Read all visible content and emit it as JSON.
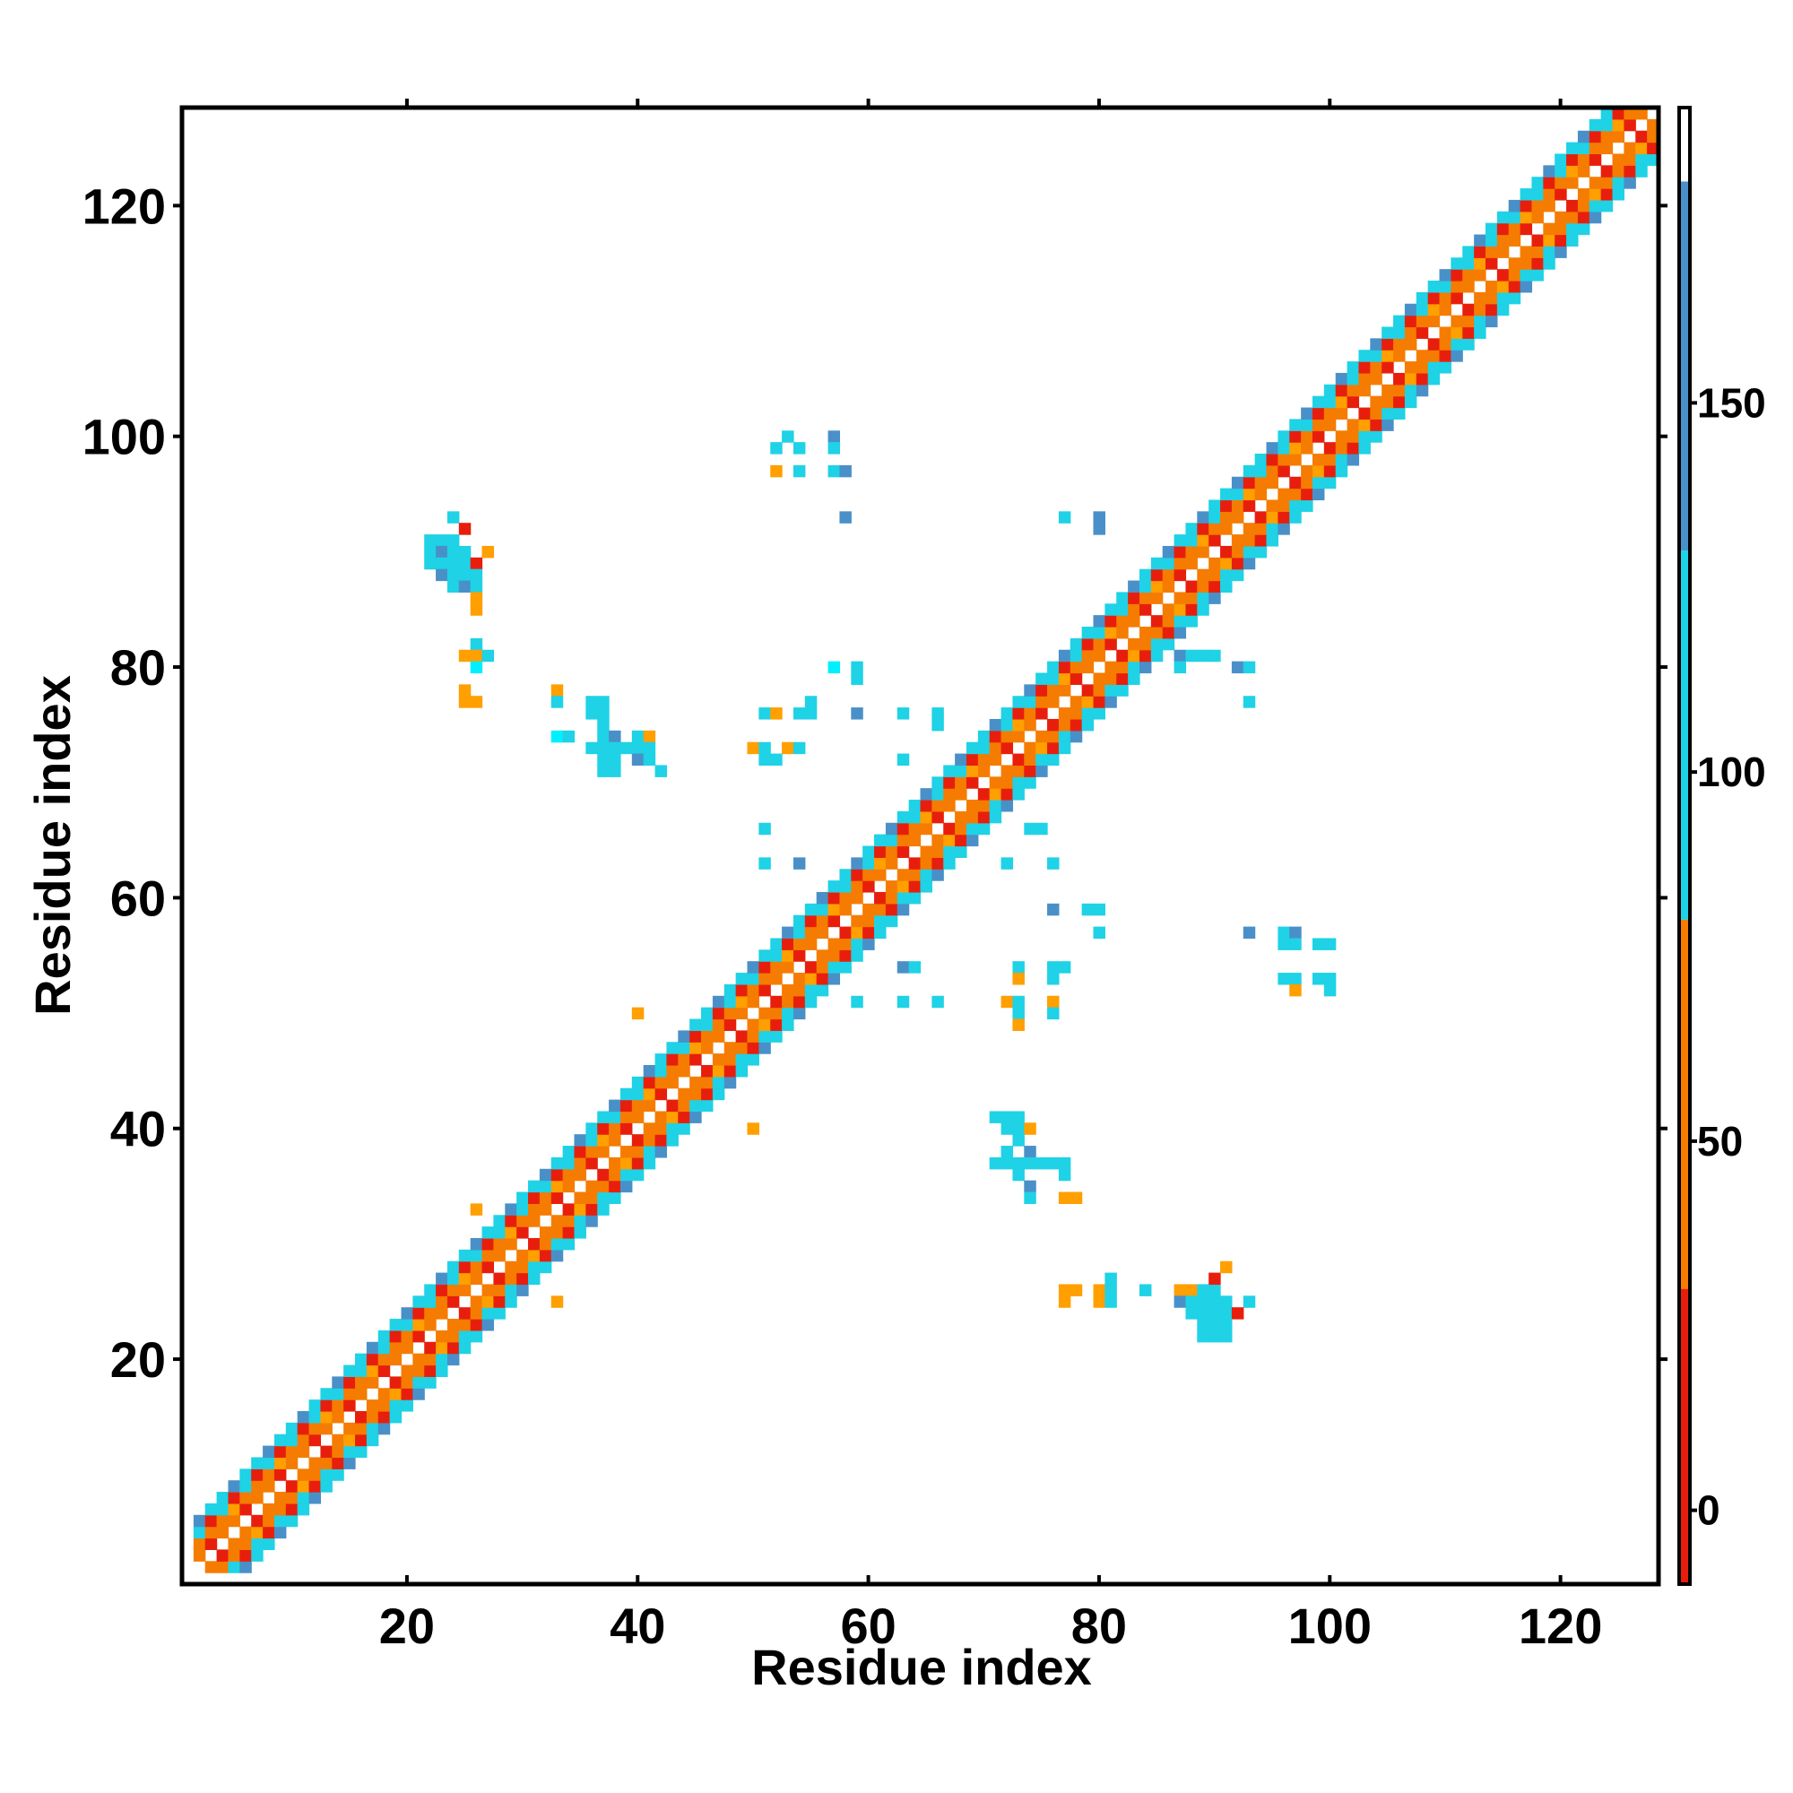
{
  "chart_data": {
    "type": "heatmap",
    "title": "",
    "xlabel": "Residue index",
    "ylabel": "Residue index",
    "xlim": [
      1,
      128
    ],
    "ylim": [
      1,
      128
    ],
    "xticks": [
      20,
      40,
      60,
      80,
      100,
      120
    ],
    "yticks": [
      20,
      40,
      60,
      80,
      100,
      120
    ],
    "grid": false,
    "colorbar": {
      "range": [
        -10,
        190
      ],
      "ticks": [
        0,
        50,
        100,
        150
      ],
      "bins": [
        {
          "from": -10,
          "to": 30,
          "color": "#e81e0c"
        },
        {
          "from": 30,
          "to": 80,
          "color": "#f57c00"
        },
        {
          "from": 80,
          "to": 130,
          "color": "#1fd2e6"
        },
        {
          "from": 130,
          "to": 180,
          "color": "#4a90c8"
        },
        {
          "from": 180,
          "to": 190,
          "color": "#ffffff"
        }
      ]
    },
    "colors": {
      "low": "#e81e0c",
      "mid": "#f57c00",
      "orange": "#ff9f00",
      "cyan": "#1fd2e6",
      "bright_cyan": "#00f0ff",
      "steel": "#4a90c8"
    },
    "diagonal": {
      "start": 2,
      "end": 128,
      "half_width": 4
    },
    "contact_cells": [
      [
        24,
        93,
        "c"
      ],
      [
        25,
        92,
        "r"
      ],
      [
        22,
        91,
        "c"
      ],
      [
        23,
        91,
        "c"
      ],
      [
        24,
        91,
        "c"
      ],
      [
        22,
        90,
        "c"
      ],
      [
        23,
        90,
        "s"
      ],
      [
        24,
        90,
        "c"
      ],
      [
        25,
        90,
        "c"
      ],
      [
        27,
        90,
        "o"
      ],
      [
        22,
        89,
        "c"
      ],
      [
        23,
        89,
        "c"
      ],
      [
        24,
        89,
        "c"
      ],
      [
        25,
        89,
        "c"
      ],
      [
        26,
        89,
        "r"
      ],
      [
        23,
        88,
        "s"
      ],
      [
        24,
        88,
        "c"
      ],
      [
        25,
        88,
        "c"
      ],
      [
        26,
        88,
        "c"
      ],
      [
        24,
        87,
        "c"
      ],
      [
        25,
        87,
        "s"
      ],
      [
        26,
        87,
        "c"
      ],
      [
        26,
        86,
        "o"
      ],
      [
        26,
        85,
        "o"
      ],
      [
        26,
        82,
        "c"
      ],
      [
        25,
        81,
        "o"
      ],
      [
        26,
        81,
        "o"
      ],
      [
        27,
        81,
        "c"
      ],
      [
        26,
        80,
        "b"
      ],
      [
        25,
        78,
        "o"
      ],
      [
        25,
        77,
        "o"
      ],
      [
        26,
        77,
        "o"
      ],
      [
        53,
        100,
        "c"
      ],
      [
        57,
        100,
        "s"
      ],
      [
        52,
        99,
        "c"
      ],
      [
        54,
        99,
        "c"
      ],
      [
        57,
        99,
        "c"
      ],
      [
        52,
        97,
        "o"
      ],
      [
        54,
        97,
        "c"
      ],
      [
        57,
        97,
        "c"
      ],
      [
        58,
        97,
        "s"
      ],
      [
        58,
        93,
        "s"
      ],
      [
        77,
        93,
        "c"
      ],
      [
        80,
        93,
        "s"
      ],
      [
        80,
        92,
        "s"
      ],
      [
        33,
        78,
        "o"
      ],
      [
        33,
        77,
        "c"
      ],
      [
        36,
        77,
        "c"
      ],
      [
        37,
        77,
        "c"
      ],
      [
        36,
        76,
        "c"
      ],
      [
        37,
        76,
        "c"
      ],
      [
        37,
        75,
        "c"
      ],
      [
        33,
        74,
        "b"
      ],
      [
        34,
        74,
        "c"
      ],
      [
        37,
        74,
        "c"
      ],
      [
        38,
        74,
        "s"
      ],
      [
        40,
        74,
        "c"
      ],
      [
        41,
        74,
        "o"
      ],
      [
        36,
        73,
        "c"
      ],
      [
        37,
        73,
        "c"
      ],
      [
        38,
        73,
        "c"
      ],
      [
        39,
        73,
        "c"
      ],
      [
        40,
        73,
        "c"
      ],
      [
        41,
        73,
        "c"
      ],
      [
        37,
        72,
        "c"
      ],
      [
        38,
        72,
        "c"
      ],
      [
        40,
        72,
        "s"
      ],
      [
        41,
        72,
        "c"
      ],
      [
        37,
        71,
        "c"
      ],
      [
        38,
        71,
        "c"
      ],
      [
        42,
        71,
        "c"
      ],
      [
        57,
        80,
        "b"
      ],
      [
        59,
        80,
        "c"
      ],
      [
        59,
        79,
        "c"
      ],
      [
        51,
        76,
        "c"
      ],
      [
        52,
        76,
        "o"
      ],
      [
        54,
        76,
        "c"
      ],
      [
        55,
        76,
        "c"
      ],
      [
        55,
        77,
        "c"
      ],
      [
        59,
        76,
        "s"
      ],
      [
        63,
        76,
        "c"
      ],
      [
        66,
        76,
        "c"
      ],
      [
        66,
        75,
        "c"
      ],
      [
        50,
        73,
        "o"
      ],
      [
        51,
        73,
        "c"
      ],
      [
        53,
        73,
        "o"
      ],
      [
        54,
        73,
        "c"
      ],
      [
        51,
        72,
        "c"
      ],
      [
        52,
        72,
        "c"
      ],
      [
        63,
        72,
        "c"
      ],
      [
        87,
        81,
        "s"
      ],
      [
        88,
        81,
        "c"
      ],
      [
        89,
        81,
        "c"
      ],
      [
        90,
        81,
        "c"
      ],
      [
        92,
        80,
        "s"
      ],
      [
        93,
        80,
        "c"
      ],
      [
        93,
        77,
        "c"
      ],
      [
        87,
        80,
        "c"
      ],
      [
        51,
        66,
        "c"
      ],
      [
        51,
        63,
        "c"
      ],
      [
        54,
        63,
        "s"
      ],
      [
        74,
        66,
        "c"
      ],
      [
        75,
        66,
        "c"
      ],
      [
        72,
        63,
        "c"
      ],
      [
        76,
        63,
        "c"
      ],
      [
        76,
        59,
        "s"
      ],
      [
        79,
        59,
        "c"
      ],
      [
        80,
        59,
        "c"
      ],
      [
        80,
        57,
        "c"
      ],
      [
        93,
        57,
        "s"
      ],
      [
        96,
        57,
        "c"
      ],
      [
        97,
        57,
        "s"
      ],
      [
        96,
        56,
        "c"
      ],
      [
        97,
        56,
        "c"
      ],
      [
        99,
        56,
        "c"
      ],
      [
        100,
        56,
        "c"
      ],
      [
        96,
        53,
        "c"
      ],
      [
        97,
        53,
        "c"
      ],
      [
        99,
        53,
        "c"
      ],
      [
        100,
        53,
        "c"
      ],
      [
        97,
        52,
        "o"
      ],
      [
        100,
        52,
        "c"
      ],
      [
        63,
        54,
        "s"
      ],
      [
        64,
        54,
        "c"
      ],
      [
        59,
        51,
        "c"
      ],
      [
        63,
        51,
        "c"
      ],
      [
        66,
        51,
        "c"
      ],
      [
        73,
        54,
        "c"
      ],
      [
        76,
        54,
        "c"
      ],
      [
        77,
        54,
        "c"
      ],
      [
        73,
        53,
        "o"
      ],
      [
        76,
        53,
        "c"
      ],
      [
        72,
        51,
        "o"
      ],
      [
        73,
        51,
        "c"
      ],
      [
        76,
        51,
        "o"
      ],
      [
        73,
        50,
        "c"
      ],
      [
        76,
        50,
        "c"
      ],
      [
        73,
        49,
        "o"
      ],
      [
        40,
        50,
        "o"
      ],
      [
        50,
        40,
        "o"
      ],
      [
        71,
        41,
        "c"
      ],
      [
        72,
        41,
        "c"
      ],
      [
        73,
        41,
        "c"
      ],
      [
        72,
        40,
        "c"
      ],
      [
        73,
        40,
        "c"
      ],
      [
        74,
        40,
        "o"
      ],
      [
        73,
        39,
        "c"
      ],
      [
        72,
        38,
        "c"
      ],
      [
        74,
        38,
        "s"
      ],
      [
        71,
        37,
        "c"
      ],
      [
        72,
        37,
        "c"
      ],
      [
        73,
        37,
        "c"
      ],
      [
        74,
        37,
        "c"
      ],
      [
        75,
        37,
        "c"
      ],
      [
        76,
        37,
        "c"
      ],
      [
        77,
        37,
        "c"
      ],
      [
        73,
        36,
        "c"
      ],
      [
        77,
        36,
        "c"
      ],
      [
        74,
        35,
        "s"
      ],
      [
        74,
        34,
        "c"
      ],
      [
        77,
        34,
        "o"
      ],
      [
        78,
        34,
        "o"
      ],
      [
        77,
        26,
        "o"
      ],
      [
        78,
        26,
        "o"
      ],
      [
        80,
        26,
        "o"
      ],
      [
        81,
        26,
        "c"
      ],
      [
        81,
        27,
        "c"
      ],
      [
        84,
        26,
        "c"
      ],
      [
        87,
        26,
        "o"
      ],
      [
        88,
        26,
        "o"
      ],
      [
        89,
        26,
        "c"
      ],
      [
        90,
        26,
        "c"
      ],
      [
        77,
        25,
        "o"
      ],
      [
        80,
        25,
        "o"
      ],
      [
        81,
        25,
        "c"
      ],
      [
        87,
        25,
        "s"
      ],
      [
        88,
        25,
        "c"
      ],
      [
        89,
        25,
        "c"
      ],
      [
        90,
        25,
        "c"
      ],
      [
        91,
        25,
        "c"
      ],
      [
        93,
        25,
        "c"
      ],
      [
        88,
        24,
        "c"
      ],
      [
        89,
        24,
        "c"
      ],
      [
        90,
        24,
        "c"
      ],
      [
        91,
        24,
        "c"
      ],
      [
        92,
        24,
        "r"
      ],
      [
        89,
        23,
        "c"
      ],
      [
        90,
        23,
        "c"
      ],
      [
        91,
        23,
        "c"
      ],
      [
        89,
        22,
        "c"
      ],
      [
        90,
        22,
        "c"
      ],
      [
        91,
        22,
        "c"
      ],
      [
        90,
        27,
        "r"
      ],
      [
        91,
        28,
        "o"
      ],
      [
        26,
        33,
        "o"
      ],
      [
        33,
        25,
        "o"
      ]
    ]
  }
}
